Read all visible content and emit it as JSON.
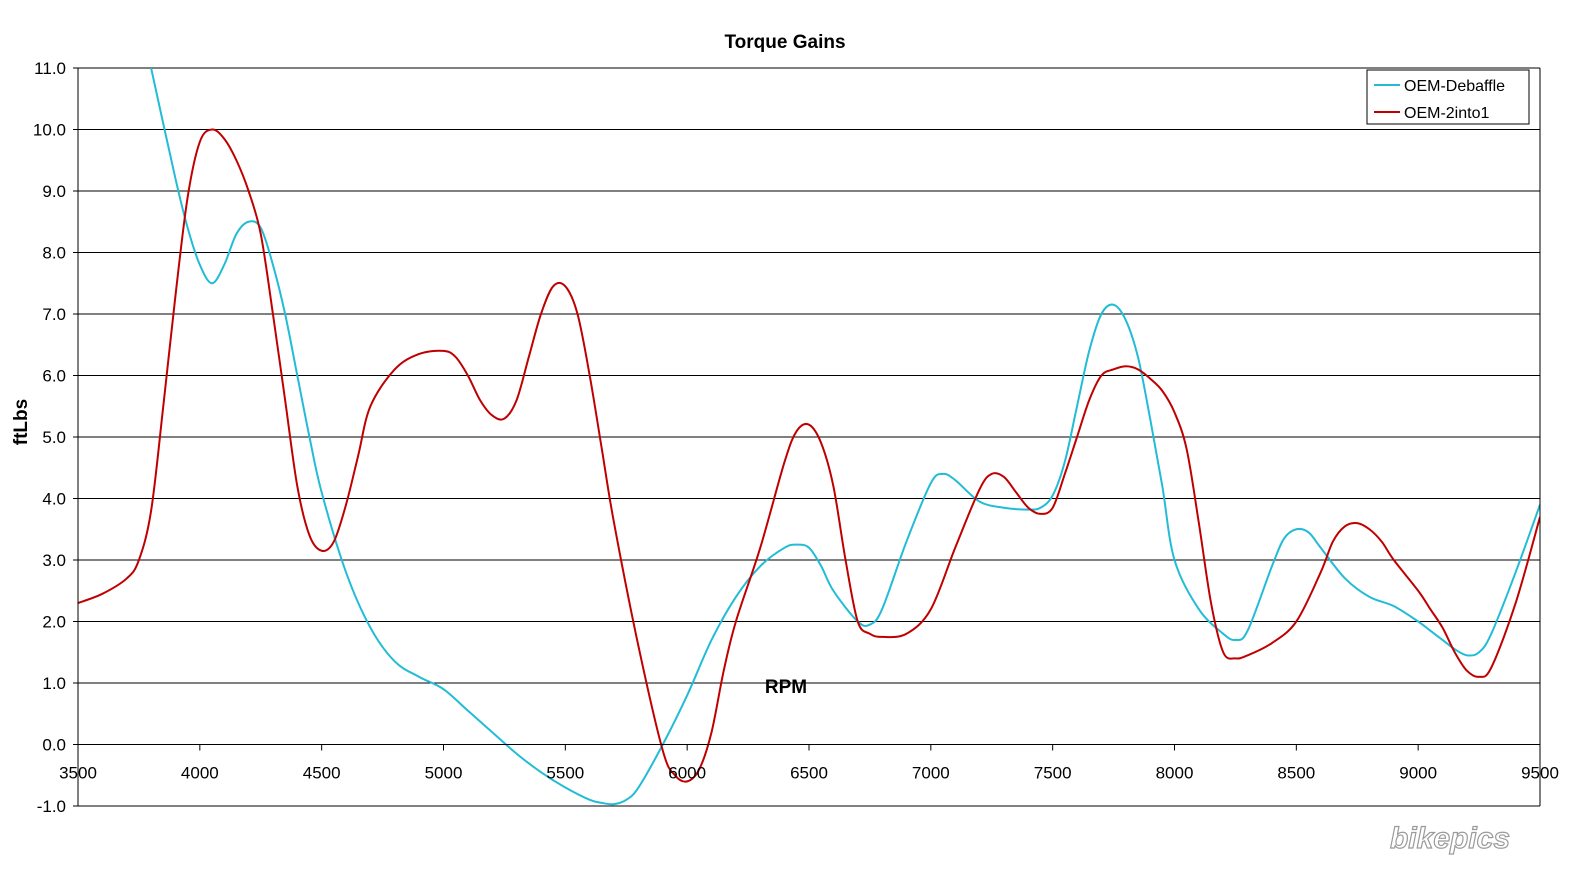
{
  "watermark": "bikepics",
  "chart_data": {
    "type": "line",
    "title": "Torque Gains",
    "xlabel": "RPM",
    "ylabel": "ftLbs",
    "xlim": [
      3500,
      9500
    ],
    "ylim": [
      -1.0,
      11.0
    ],
    "x_ticks": [
      "3500",
      "4000",
      "4500",
      "5000",
      "5500",
      "6000",
      "6500",
      "7000",
      "7500",
      "8000",
      "8500",
      "9000",
      "9500"
    ],
    "y_ticks": [
      "-1.0",
      "0.0",
      "1.0",
      "2.0",
      "3.0",
      "4.0",
      "5.0",
      "6.0",
      "7.0",
      "8.0",
      "9.0",
      "10.0",
      "11.0"
    ],
    "grid": "horizontal",
    "legend_position": "top-right",
    "series": [
      {
        "name": "OEM-Debaffle",
        "color": "#22bcd6",
        "x": [
          3800,
          3900,
          3950,
          4000,
          4050,
          4100,
          4150,
          4200,
          4250,
          4300,
          4350,
          4400,
          4450,
          4500,
          4600,
          4700,
          4800,
          4900,
          5000,
          5100,
          5200,
          5300,
          5400,
          5500,
          5600,
          5650,
          5700,
          5750,
          5800,
          5900,
          6000,
          6100,
          6200,
          6300,
          6400,
          6450,
          6500,
          6550,
          6600,
          6700,
          6750,
          6800,
          6900,
          7000,
          7050,
          7100,
          7200,
          7300,
          7400,
          7450,
          7500,
          7550,
          7600,
          7650,
          7700,
          7750,
          7800,
          7850,
          7900,
          7950,
          8000,
          8100,
          8200,
          8250,
          8300,
          8400,
          8450,
          8500,
          8550,
          8600,
          8700,
          8800,
          8900,
          9000,
          9050,
          9100,
          9150,
          9200,
          9250,
          9300,
          9400,
          9500
        ],
        "values": [
          11.0,
          9.2,
          8.4,
          7.8,
          7.5,
          7.8,
          8.3,
          8.5,
          8.4,
          7.8,
          7.0,
          6.0,
          5.0,
          4.1,
          2.8,
          1.9,
          1.35,
          1.1,
          0.9,
          0.55,
          0.2,
          -0.15,
          -0.45,
          -0.7,
          -0.9,
          -0.95,
          -0.97,
          -0.9,
          -0.7,
          0.0,
          0.8,
          1.7,
          2.4,
          2.9,
          3.2,
          3.25,
          3.2,
          2.9,
          2.5,
          2.0,
          1.95,
          2.2,
          3.3,
          4.25,
          4.4,
          4.3,
          3.95,
          3.85,
          3.82,
          3.85,
          4.05,
          4.6,
          5.5,
          6.4,
          7.0,
          7.15,
          6.9,
          6.3,
          5.3,
          4.2,
          3.0,
          2.2,
          1.8,
          1.7,
          1.85,
          2.9,
          3.35,
          3.5,
          3.45,
          3.2,
          2.7,
          2.4,
          2.25,
          2.0,
          1.85,
          1.7,
          1.55,
          1.45,
          1.5,
          1.8,
          2.8,
          3.9
        ]
      },
      {
        "name": "OEM-2into1",
        "color": "#c00000",
        "x": [
          3500,
          3600,
          3700,
          3750,
          3800,
          3850,
          3900,
          3950,
          4000,
          4050,
          4100,
          4150,
          4200,
          4250,
          4300,
          4350,
          4400,
          4450,
          4500,
          4550,
          4600,
          4650,
          4700,
          4800,
          4900,
          5000,
          5050,
          5100,
          5150,
          5200,
          5250,
          5300,
          5350,
          5400,
          5450,
          5500,
          5550,
          5600,
          5650,
          5700,
          5800,
          5900,
          5950,
          6000,
          6050,
          6100,
          6150,
          6200,
          6300,
          6400,
          6450,
          6500,
          6550,
          6600,
          6650,
          6700,
          6750,
          6800,
          6900,
          7000,
          7100,
          7200,
          7250,
          7300,
          7350,
          7400,
          7450,
          7500,
          7550,
          7600,
          7650,
          7700,
          7750,
          7800,
          7850,
          7900,
          7950,
          8000,
          8050,
          8100,
          8150,
          8200,
          8250,
          8300,
          8400,
          8500,
          8600,
          8650,
          8700,
          8750,
          8800,
          8850,
          8900,
          9000,
          9050,
          9100,
          9150,
          9200,
          9250,
          9300,
          9400,
          9500
        ],
        "values": [
          2.3,
          2.45,
          2.7,
          3.0,
          3.8,
          5.5,
          7.3,
          8.9,
          9.8,
          10.0,
          9.85,
          9.5,
          9.0,
          8.3,
          7.0,
          5.6,
          4.2,
          3.4,
          3.15,
          3.3,
          3.9,
          4.7,
          5.5,
          6.1,
          6.35,
          6.4,
          6.3,
          6.0,
          5.6,
          5.35,
          5.3,
          5.6,
          6.3,
          7.0,
          7.45,
          7.45,
          7.0,
          6.0,
          4.8,
          3.6,
          1.6,
          -0.1,
          -0.5,
          -0.6,
          -0.4,
          0.2,
          1.2,
          2.0,
          3.2,
          4.6,
          5.1,
          5.2,
          4.9,
          4.2,
          3.0,
          2.0,
          1.8,
          1.75,
          1.8,
          2.2,
          3.2,
          4.15,
          4.4,
          4.35,
          4.1,
          3.85,
          3.75,
          3.85,
          4.4,
          5.0,
          5.6,
          6.0,
          6.1,
          6.15,
          6.1,
          5.95,
          5.75,
          5.4,
          4.8,
          3.6,
          2.3,
          1.5,
          1.4,
          1.45,
          1.65,
          2.0,
          2.8,
          3.3,
          3.55,
          3.6,
          3.5,
          3.3,
          3.0,
          2.5,
          2.2,
          1.9,
          1.5,
          1.2,
          1.1,
          1.25,
          2.3,
          3.7
        ]
      }
    ]
  }
}
